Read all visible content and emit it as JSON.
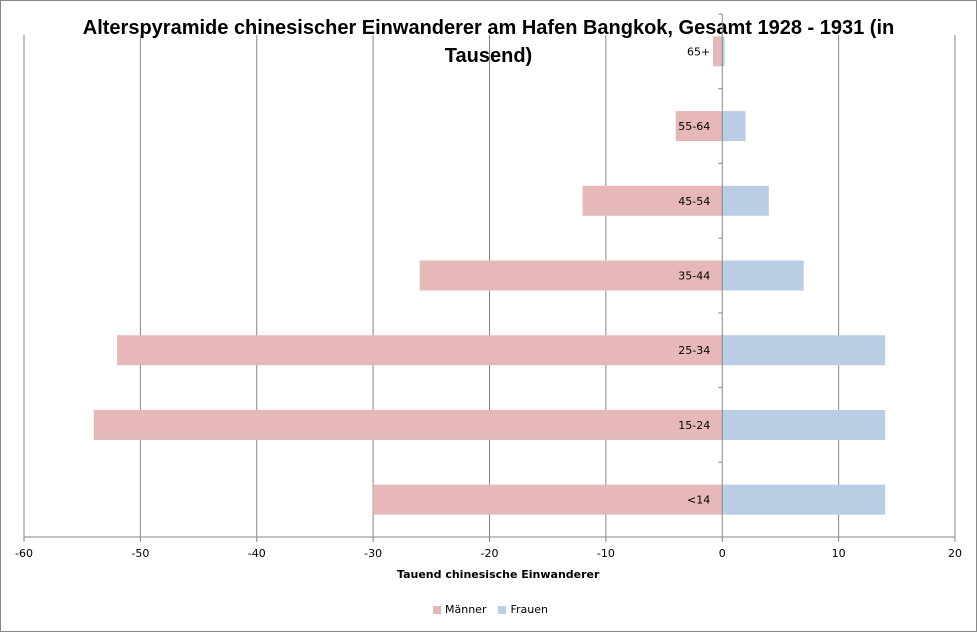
{
  "chart_data": {
    "type": "bar",
    "orientation": "horizontal",
    "title": "Alterspyramide chinesischer Einwanderer am Hafen Bangkok, Gesamt 1928 - 1931 (in Tausend)",
    "xlabel": "Tauend chinesische  Einwanderer",
    "ylabel": "",
    "xlim": [
      -60,
      20
    ],
    "xticks": [
      -60,
      -50,
      -40,
      -30,
      -20,
      -10,
      0,
      10,
      20
    ],
    "grid": "vertical",
    "legend_position": "bottom",
    "categories": [
      "<14",
      "15-24",
      "25-34",
      "35-44",
      "45-54",
      "55-64",
      "65+"
    ],
    "series": [
      {
        "name": "Männer",
        "color": "#e6b9b8",
        "values": [
          -30,
          -54,
          -52,
          -26,
          -12,
          -4,
          -0.8
        ]
      },
      {
        "name": "Frauen",
        "color": "#b9cde5",
        "values": [
          14,
          14,
          14,
          7,
          4,
          2,
          0.2
        ]
      }
    ]
  }
}
